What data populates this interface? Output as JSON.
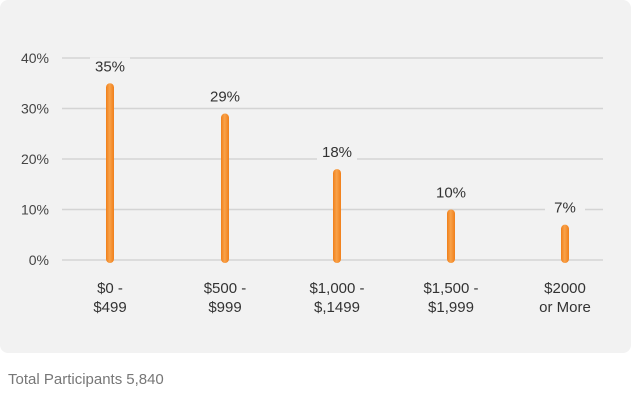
{
  "chart_data": {
    "type": "bar",
    "categories": [
      [
        "$0 -",
        "$499"
      ],
      [
        "$500 -",
        "$999"
      ],
      [
        "$1,000 -",
        "$,1499"
      ],
      [
        "$1,500 -",
        "$1,999"
      ],
      [
        "$2000",
        "or More"
      ]
    ],
    "values": [
      35,
      29,
      18,
      10,
      7
    ],
    "value_labels": [
      "35%",
      "29%",
      "18%",
      "10%",
      "7%"
    ],
    "y_ticks": [
      "0%",
      "10%",
      "20%",
      "30%",
      "40%"
    ],
    "ylim": [
      0,
      40
    ],
    "grid": true,
    "bar_color": "#f07f1a",
    "bar_highlight": "#f9a24a",
    "grid_color": "#d4d4d4"
  },
  "footer": {
    "label": "Total Participants",
    "count": "5,840"
  }
}
